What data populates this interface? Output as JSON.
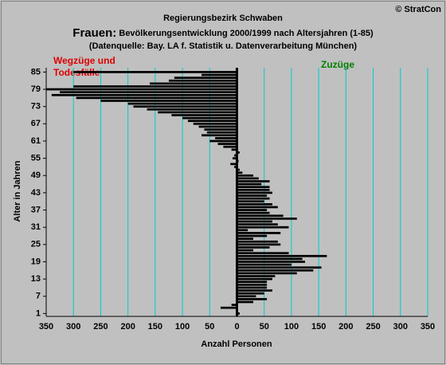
{
  "chart_data": {
    "type": "barh",
    "title": "Regierungsbezirk Schwaben",
    "subtitle_lead": "Frauen:",
    "subtitle": "Bevölkerungsentwicklung 2000/1999   nach Altersjahren (1-85)",
    "source": "(Datenquelle: Bay. LA f. Statistik u. Datenverarbeitung München)",
    "copyright": "© StratCon",
    "annotation_left": [
      "Wegzüge und",
      "Todesfälle"
    ],
    "annotation_right": "Zuzüge",
    "xlabel": "Anzahl Personen",
    "ylabel": "Alter in Jahren",
    "color": "#000000",
    "grid_color": "#00cccc",
    "grid": true,
    "y": [
      1,
      2,
      3,
      4,
      5,
      6,
      7,
      8,
      9,
      10,
      11,
      12,
      13,
      14,
      15,
      16,
      17,
      18,
      19,
      20,
      21,
      22,
      23,
      24,
      25,
      26,
      27,
      28,
      29,
      30,
      31,
      32,
      33,
      34,
      35,
      36,
      37,
      38,
      39,
      40,
      41,
      42,
      43,
      44,
      45,
      46,
      47,
      48,
      49,
      50,
      51,
      52,
      53,
      54,
      55,
      56,
      57,
      58,
      59,
      60,
      61,
      62,
      63,
      64,
      65,
      66,
      67,
      68,
      69,
      70,
      71,
      72,
      73,
      74,
      75,
      76,
      77,
      78,
      79,
      80,
      81,
      82,
      83,
      84,
      85
    ],
    "values": [
      5,
      0,
      -30,
      -10,
      30,
      55,
      35,
      50,
      65,
      55,
      55,
      55,
      65,
      70,
      110,
      140,
      155,
      100,
      125,
      120,
      165,
      95,
      30,
      60,
      80,
      75,
      30,
      55,
      80,
      20,
      95,
      75,
      65,
      110,
      85,
      60,
      55,
      75,
      65,
      50,
      60,
      55,
      65,
      60,
      60,
      45,
      60,
      40,
      30,
      10,
      5,
      -5,
      -12,
      3,
      -8,
      -5,
      5,
      -10,
      -25,
      -35,
      -50,
      -40,
      -65,
      -55,
      -60,
      -70,
      -80,
      -90,
      -100,
      -120,
      -145,
      -165,
      -190,
      -200,
      -250,
      -295,
      -340,
      -325,
      -350,
      -300,
      -160,
      -125,
      -115,
      -65,
      -300
    ],
    "xlim": [
      -350,
      350
    ],
    "xticks": [
      {
        "value": -350,
        "label": "350"
      },
      {
        "value": -300,
        "label": "300"
      },
      {
        "value": -250,
        "label": "250"
      },
      {
        "value": -200,
        "label": "200"
      },
      {
        "value": -150,
        "label": "150"
      },
      {
        "value": -100,
        "label": "100"
      },
      {
        "value": -50,
        "label": "50"
      },
      0,
      50,
      100,
      150,
      200,
      250,
      300,
      350
    ],
    "ylim": [
      0,
      86.5
    ],
    "yticks": [
      1,
      7,
      13,
      19,
      25,
      31,
      37,
      43,
      49,
      55,
      61,
      67,
      73,
      79,
      85
    ]
  }
}
